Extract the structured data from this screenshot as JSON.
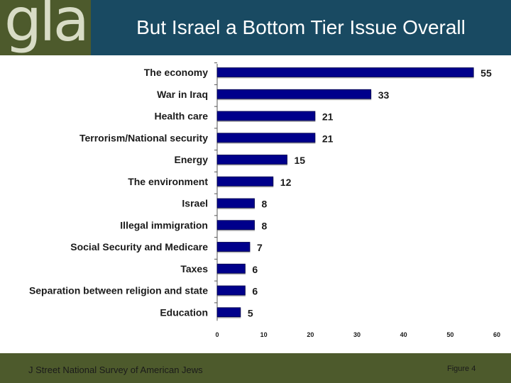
{
  "header": {
    "logo_text": "gla",
    "title": "But Israel a Bottom Tier Issue Overall"
  },
  "footer": {
    "source": "J Street National Survey of American Jews",
    "figure": "Figure 4"
  },
  "colors": {
    "bar": "#00008b",
    "title_bar": "#194a62",
    "accent_green": "#4d5a2c"
  },
  "chart_data": {
    "type": "bar",
    "orientation": "horizontal",
    "title": "But Israel a Bottom Tier Issue Overall",
    "categories": [
      "The economy",
      "War in Iraq",
      "Health care",
      "Terrorism/National security",
      "Energy",
      "The environment",
      "Israel",
      "Illegal immigration",
      "Social Security and Medicare",
      "Taxes",
      "Separation between religion and state",
      "Education"
    ],
    "values": [
      55,
      33,
      21,
      21,
      15,
      12,
      8,
      8,
      7,
      6,
      6,
      5
    ],
    "xlim": [
      0,
      60
    ],
    "xticks": [
      0,
      10,
      20,
      30,
      40,
      50,
      60
    ],
    "xlabel": "",
    "ylabel": "",
    "grid": false,
    "legend": "none"
  }
}
